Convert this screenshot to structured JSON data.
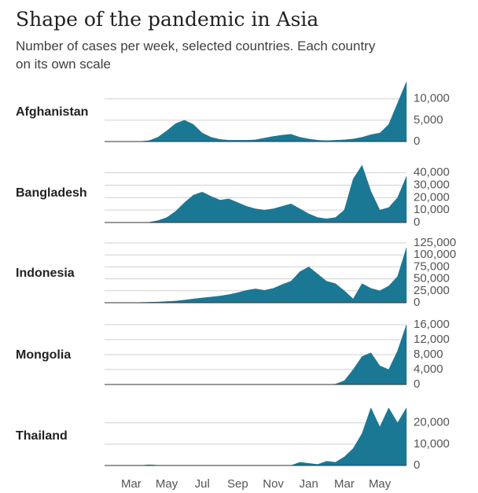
{
  "title": "Shape of the pandemic in Asia",
  "subtitle": [
    "Number of cases per week, selected countries. Each country",
    "on its own scale"
  ],
  "categories": [
    null,
    null,
    "Mar",
    null,
    null,
    null,
    "May",
    null,
    null,
    null,
    "Jul",
    null,
    null,
    null,
    "Sep",
    null,
    null,
    null,
    "Nov",
    null,
    null,
    null,
    "Jan",
    null,
    null,
    null,
    "Mar",
    null,
    null,
    null,
    "May",
    null,
    null,
    null,
    null
  ],
  "chart_data": [
    {
      "type": "area",
      "name": "Afghanistan",
      "color": "#1b7895",
      "ylim": [
        0,
        14000
      ],
      "yticks": [
        0,
        {
          "value": 5000,
          "label": "5,000"
        },
        {
          "value": 10000,
          "label": "10,000"
        }
      ],
      "grid": true,
      "values": [
        0,
        0,
        0,
        0,
        0,
        200,
        1000,
        2500,
        4200,
        5000,
        4000,
        2000,
        1000,
        500,
        300,
        300,
        300,
        400,
        800,
        1200,
        1500,
        1700,
        1000,
        600,
        300,
        200,
        300,
        400,
        600,
        1000,
        1600,
        2000,
        4000,
        9000,
        14000
      ]
    },
    {
      "type": "area",
      "name": "Bangladesh",
      "color": "#1b7895",
      "ylim": [
        0,
        48000
      ],
      "yticks": [
        0,
        {
          "value": 10000,
          "label": "10,000"
        },
        {
          "value": 20000,
          "label": "20,000"
        },
        {
          "value": 30000,
          "label": "30,000"
        },
        {
          "value": 40000,
          "label": "40,000"
        }
      ],
      "grid": true,
      "values": [
        0,
        0,
        0,
        0,
        0,
        200,
        1500,
        4000,
        9000,
        16000,
        22000,
        24500,
        21000,
        18000,
        19000,
        16000,
        13000,
        11000,
        10000,
        11000,
        13000,
        15000,
        11000,
        7000,
        4000,
        3000,
        4000,
        10000,
        35000,
        46000,
        25000,
        10000,
        12000,
        20000,
        37000
      ]
    },
    {
      "type": "area",
      "name": "Indonesia",
      "color": "#1b7895",
      "ylim": [
        0,
        125000
      ],
      "yticks": [
        0,
        {
          "value": 25000,
          "label": "25,000"
        },
        {
          "value": 50000,
          "label": "50,000"
        },
        {
          "value": 75000,
          "label": "75,000"
        },
        {
          "value": 100000,
          "label": "100,000"
        },
        {
          "value": 125000,
          "label": "125,000"
        }
      ],
      "grid": true,
      "values": [
        0,
        0,
        0,
        0,
        500,
        1000,
        1500,
        2500,
        3500,
        5500,
        8000,
        10000,
        12000,
        14000,
        17000,
        21000,
        26000,
        29000,
        26000,
        30000,
        38000,
        45000,
        65000,
        75000,
        60000,
        45000,
        40000,
        25000,
        8000,
        40000,
        30000,
        25000,
        35000,
        55000,
        115000
      ]
    },
    {
      "type": "area",
      "name": "Mongolia",
      "color": "#1b7895",
      "ylim": [
        0,
        16000
      ],
      "yticks": [
        0,
        {
          "value": 4000,
          "label": "4,000"
        },
        {
          "value": 8000,
          "label": "8,000"
        },
        {
          "value": 12000,
          "label": "12,000"
        },
        {
          "value": 16000,
          "label": "16,000"
        }
      ],
      "grid": true,
      "values": [
        0,
        0,
        0,
        0,
        0,
        0,
        0,
        0,
        0,
        0,
        0,
        0,
        0,
        0,
        0,
        0,
        0,
        0,
        0,
        0,
        0,
        0,
        0,
        0,
        0,
        0,
        100,
        1000,
        4000,
        7500,
        8500,
        5000,
        4000,
        9000,
        16000
      ]
    },
    {
      "type": "area",
      "name": "Thailand",
      "color": "#1b7895",
      "ylim": [
        0,
        28000
      ],
      "yticks": [
        0,
        {
          "value": 10000,
          "label": "10,000"
        },
        {
          "value": 20000,
          "label": "20,000"
        }
      ],
      "grid": true,
      "values": [
        0,
        0,
        0,
        0,
        0,
        300,
        100,
        0,
        0,
        0,
        0,
        0,
        0,
        0,
        0,
        0,
        0,
        0,
        0,
        0,
        0,
        0,
        1500,
        1000,
        500,
        2000,
        1500,
        4000,
        8000,
        15000,
        27000,
        18000,
        27000,
        20000,
        27000
      ]
    }
  ]
}
